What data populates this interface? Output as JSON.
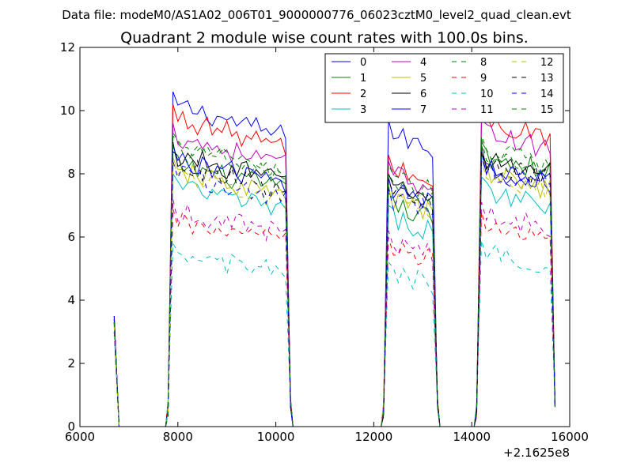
{
  "chart_data": {
    "type": "line",
    "suptitle": "Data file: modeM0/AS1A02_006T01_9000000776_06023cztM0_level2_quad_clean.evt",
    "title": "Quadrant 2 module wise count rates with 100.0s bins.",
    "xlabel": "",
    "ylabel": "",
    "x_offset_label": "+2.1625e8",
    "xlim": [
      6000,
      16000
    ],
    "ylim": [
      0,
      12
    ],
    "xticks": [
      6000,
      8000,
      10000,
      12000,
      14000,
      16000
    ],
    "yticks": [
      0,
      2,
      4,
      6,
      8,
      10,
      12
    ],
    "legend_position": "top-right",
    "segments": [
      {
        "start": 6700,
        "end": 6800,
        "step": 100
      },
      {
        "start": 7800,
        "end": 10300,
        "step": 100
      },
      {
        "start": 12200,
        "end": 13300,
        "step": 100
      },
      {
        "start": 14100,
        "end": 15700,
        "step": 100
      }
    ],
    "segment_edges": [
      {
        "gap_value": 0,
        "first_values": [
          0.8,
          0.1
        ]
      },
      {
        "gap_value": 0,
        "first_values": [
          0.3
        ]
      },
      {
        "gap_value": 0,
        "first_values": [
          0.3
        ]
      },
      {
        "gap_value": 0,
        "first_values": [
          0.3
        ]
      }
    ],
    "series": [
      {
        "name": "0",
        "color": "#0000ff",
        "dash": "solid",
        "levels": [
          3.5,
          10.2,
          9.3,
          8.2,
          8.7
        ]
      },
      {
        "name": "1",
        "color": "#008000",
        "dash": "solid",
        "levels": [
          3.4,
          8.3,
          7.0,
          8.6,
          7.6
        ]
      },
      {
        "name": "2",
        "color": "#ff0000",
        "dash": "solid",
        "levels": [
          3.5,
          9.8,
          8.2,
          9.7,
          8.4
        ]
      },
      {
        "name": "3",
        "color": "#00bfbf",
        "dash": "solid",
        "levels": [
          3.3,
          7.6,
          6.6,
          7.5,
          6.9
        ]
      },
      {
        "name": "4",
        "color": "#bf00bf",
        "dash": "solid",
        "levels": [
          3.4,
          9.2,
          8.0,
          9.3,
          8.2
        ]
      },
      {
        "name": "5",
        "color": "#bfbf00",
        "dash": "solid",
        "levels": [
          3.3,
          8.1,
          7.2,
          8.0,
          7.4
        ]
      },
      {
        "name": "6",
        "color": "#000000",
        "dash": "solid",
        "levels": [
          3.4,
          8.6,
          7.6,
          8.5,
          7.9
        ]
      },
      {
        "name": "7",
        "color": "#0000ff",
        "dash": "solid",
        "levels": [
          3.5,
          8.5,
          7.5,
          8.3,
          7.7
        ]
      },
      {
        "name": "8",
        "color": "#008000",
        "dash": "dashed",
        "levels": [
          3.2,
          8.8,
          7.6,
          8.7,
          7.9
        ]
      },
      {
        "name": "9",
        "color": "#ff0000",
        "dash": "dashed",
        "levels": [
          3.0,
          6.5,
          5.6,
          6.4,
          5.8
        ]
      },
      {
        "name": "10",
        "color": "#00bfbf",
        "dash": "dashed",
        "levels": [
          2.9,
          5.4,
          4.8,
          5.5,
          4.9
        ]
      },
      {
        "name": "11",
        "color": "#bf00bf",
        "dash": "dashed",
        "levels": [
          3.0,
          6.8,
          5.8,
          6.7,
          6.0
        ]
      },
      {
        "name": "12",
        "color": "#bfbf00",
        "dash": "dashed",
        "levels": [
          3.2,
          8.0,
          7.1,
          8.0,
          7.2
        ]
      },
      {
        "name": "13",
        "color": "#000000",
        "dash": "dashed",
        "levels": [
          3.3,
          8.3,
          7.4,
          8.3,
          7.6
        ]
      },
      {
        "name": "14",
        "color": "#0000ff",
        "dash": "dashed",
        "levels": [
          3.3,
          8.0,
          7.2,
          8.1,
          7.3
        ]
      },
      {
        "name": "15",
        "color": "#008000",
        "dash": "dashed",
        "levels": [
          3.3,
          8.9,
          7.9,
          8.8,
          8.0
        ]
      }
    ]
  }
}
